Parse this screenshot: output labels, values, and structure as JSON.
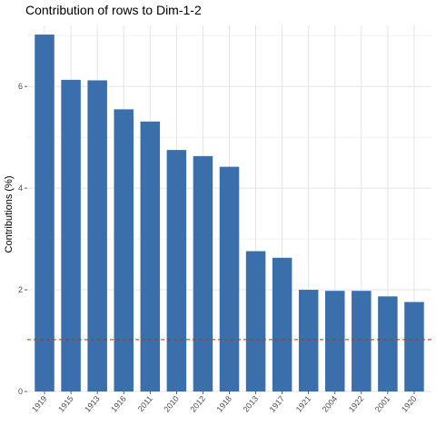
{
  "chart_data": {
    "type": "bar",
    "title": "Contribution of rows to Dim-1-2",
    "xlabel": "",
    "ylabel": "Contributions (%)",
    "categories": [
      "1919",
      "1915",
      "1913",
      "1916",
      "2011",
      "2010",
      "2012",
      "1918",
      "2013",
      "1917",
      "1921",
      "2004",
      "1922",
      "2001",
      "1920"
    ],
    "values": [
      7.02,
      6.13,
      6.12,
      5.55,
      5.31,
      4.75,
      4.63,
      4.42,
      2.76,
      2.63,
      2.0,
      1.98,
      1.98,
      1.87,
      1.76
    ],
    "ylim": [
      0,
      7.2
    ],
    "yticks": [
      0,
      2,
      4,
      6
    ],
    "reference_line": {
      "value": 1.02,
      "color": "#e41a1c",
      "style": "dashed"
    },
    "bar_color": "#3a6fab",
    "grid": true,
    "legend": "none"
  }
}
